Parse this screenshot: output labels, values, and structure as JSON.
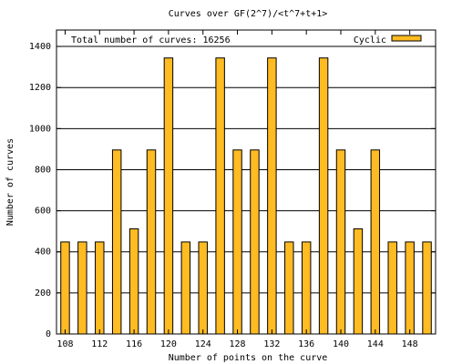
{
  "chart_data": {
    "type": "bar",
    "title": "Curves over GF(2^7)/<t^7+t+1>",
    "xlabel": "Number of points on the curve",
    "ylabel": "Number of curves",
    "annotation": "Total number of curves: 16256",
    "legend": {
      "label": "Cyclic",
      "position": "top-right"
    },
    "x": [
      108,
      110,
      112,
      114,
      116,
      118,
      120,
      122,
      124,
      126,
      128,
      130,
      132,
      134,
      136,
      138,
      140,
      142,
      144,
      146,
      148,
      150
    ],
    "series": [
      {
        "name": "Cyclic",
        "values": [
          448,
          448,
          448,
          896,
          512,
          896,
          1344,
          448,
          448,
          1344,
          896,
          896,
          1344,
          448,
          448,
          1344,
          896,
          512,
          896,
          448,
          448,
          448
        ]
      }
    ],
    "xlim": [
      107,
      151
    ],
    "ylim": [
      0,
      1480
    ],
    "xticks": [
      "108",
      "112",
      "116",
      "120",
      "124",
      "128",
      "132",
      "136",
      "140",
      "144",
      "148"
    ],
    "yticks": [
      "0",
      "200",
      "400",
      "600",
      "800",
      "1000",
      "1200",
      "1400"
    ],
    "grid": "horizontal",
    "bar_color": "#ffbb22",
    "edge_color": "#000000"
  }
}
